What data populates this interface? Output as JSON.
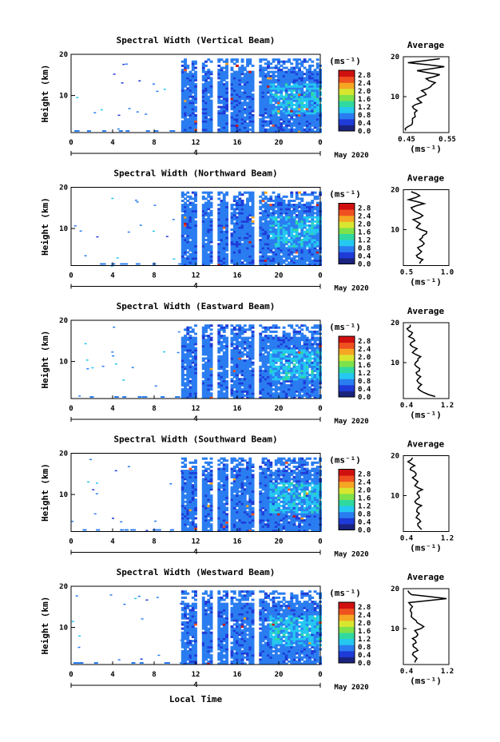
{
  "figure": {
    "x_ticks": [
      "0",
      "4",
      "8",
      "12",
      "16",
      "20",
      "0"
    ],
    "date_marker": "4",
    "date_label": "May 2020",
    "xlabel": "Local Time",
    "ylabel": "Height (km)",
    "y_ticks": [
      "10",
      "20"
    ],
    "colorbar_unit": "(ms⁻¹)",
    "colorbar_ticks": [
      "0.0",
      "0.4",
      "0.8",
      "1.2",
      "1.6",
      "2.0",
      "2.4",
      "2.8"
    ],
    "avg_title": "Average",
    "avg_xlabel": "(ms⁻¹)"
  },
  "chart_data": [
    {
      "type": "heatmap",
      "title": "Spectral Width (Vertical Beam)",
      "xlabel": "Local Time",
      "ylabel": "Height (km)",
      "xlim": [
        0,
        24
      ],
      "ylim": [
        1,
        20
      ],
      "colorbar": {
        "label": "(ms⁻¹)",
        "range": [
          0.0,
          2.8
        ]
      },
      "data_start_hour": 10.6,
      "gap_hours": [
        [
          12.0,
          12.4
        ],
        [
          13.6,
          14.0
        ],
        [
          14.9,
          15.2
        ],
        [
          17.6,
          17.9
        ]
      ],
      "average_profile": {
        "title": "Average",
        "xlabel": "(ms⁻¹)",
        "x_ticks": [
          "0.45",
          "0.55"
        ],
        "xlim": [
          0.45,
          0.55
        ],
        "ylim": [
          1,
          20
        ],
        "height_km": [
          1.5,
          2.5,
          3.5,
          4.5,
          5.5,
          6.5,
          7.5,
          8.5,
          9.5,
          10.5,
          11.5,
          12.5,
          13.5,
          14.5,
          15.5,
          16.5,
          17.5,
          18.5,
          19.5
        ],
        "value": [
          0.455,
          0.46,
          0.47,
          0.47,
          0.475,
          0.48,
          0.47,
          0.49,
          0.48,
          0.5,
          0.49,
          0.51,
          0.52,
          0.5,
          0.53,
          0.48,
          0.54,
          0.46,
          0.53
        ]
      }
    },
    {
      "type": "heatmap",
      "title": "Spectral Width (Northward Beam)",
      "xlabel": "Local Time",
      "ylabel": "Height (km)",
      "xlim": [
        0,
        24
      ],
      "ylim": [
        1,
        20
      ],
      "colorbar": {
        "label": "(ms⁻¹)",
        "range": [
          0.0,
          2.8
        ]
      },
      "data_start_hour": 10.6,
      "gap_hours": [
        [
          12.0,
          12.4
        ],
        [
          13.6,
          14.0
        ],
        [
          14.9,
          15.2
        ],
        [
          17.6,
          17.9
        ]
      ],
      "average_profile": {
        "title": "Average",
        "xlabel": "(ms⁻¹)",
        "x_ticks": [
          "0.5",
          "1.0"
        ],
        "xlim": [
          0.3,
          1.0
        ],
        "ylim": [
          1,
          20
        ],
        "height_km": [
          1.5,
          2.5,
          3.5,
          4.5,
          5.5,
          6.5,
          7.5,
          8.5,
          9.5,
          10.5,
          11.5,
          12.5,
          13.5,
          14.5,
          15.5,
          16.5,
          17.5,
          18.5,
          19.5
        ],
        "value": [
          0.55,
          0.6,
          0.5,
          0.58,
          0.52,
          0.62,
          0.55,
          0.6,
          0.66,
          0.5,
          0.56,
          0.45,
          0.6,
          0.48,
          0.42,
          0.62,
          0.38,
          0.55,
          0.42
        ]
      }
    },
    {
      "type": "heatmap",
      "title": "Spectral Width (Eastward Beam)",
      "xlabel": "Local Time",
      "ylabel": "Height (km)",
      "xlim": [
        0,
        24
      ],
      "ylim": [
        1,
        20
      ],
      "colorbar": {
        "label": "(ms⁻¹)",
        "range": [
          0.0,
          2.8
        ]
      },
      "data_start_hour": 10.6,
      "gap_hours": [
        [
          12.0,
          12.4
        ],
        [
          13.6,
          14.0
        ],
        [
          14.9,
          15.2
        ],
        [
          17.6,
          17.9
        ]
      ],
      "average_profile": {
        "title": "Average",
        "xlabel": "(ms⁻¹)",
        "x_ticks": [
          "0.4",
          "1.2"
        ],
        "xlim": [
          0.3,
          1.3
        ],
        "ylim": [
          1,
          20
        ],
        "height_km": [
          1.5,
          2.5,
          3.5,
          4.5,
          5.5,
          6.5,
          7.5,
          8.5,
          9.5,
          10.5,
          11.5,
          12.5,
          13.5,
          14.5,
          15.5,
          16.5,
          17.5,
          18.5,
          19.5
        ],
        "value": [
          1.0,
          0.75,
          0.62,
          0.7,
          0.6,
          0.68,
          0.58,
          0.66,
          0.55,
          0.62,
          0.68,
          0.5,
          0.6,
          0.45,
          0.55,
          0.42,
          0.5,
          0.38,
          0.45
        ]
      }
    },
    {
      "type": "heatmap",
      "title": "Spectral Width (Southward Beam)",
      "xlabel": "Local Time",
      "ylabel": "Height (km)",
      "xlim": [
        0,
        24
      ],
      "ylim": [
        1,
        20
      ],
      "colorbar": {
        "label": "(ms⁻¹)",
        "range": [
          0.0,
          2.8
        ]
      },
      "data_start_hour": 10.6,
      "gap_hours": [
        [
          12.0,
          12.4
        ],
        [
          13.6,
          14.0
        ],
        [
          14.9,
          15.2
        ],
        [
          17.6,
          17.9
        ]
      ],
      "average_profile": {
        "title": "Average",
        "xlabel": "(ms⁻¹)",
        "x_ticks": [
          "0.4",
          "1.2"
        ],
        "xlim": [
          0.3,
          1.3
        ],
        "ylim": [
          1,
          20
        ],
        "height_km": [
          1.5,
          2.5,
          3.5,
          4.5,
          5.5,
          6.5,
          7.5,
          8.5,
          9.5,
          10.5,
          11.5,
          12.5,
          13.5,
          14.5,
          15.5,
          16.5,
          17.5,
          18.5,
          19.5
        ],
        "value": [
          0.7,
          0.62,
          0.68,
          0.58,
          0.65,
          0.6,
          0.7,
          0.55,
          0.65,
          0.6,
          0.72,
          0.55,
          0.62,
          0.5,
          0.58,
          0.45,
          0.55,
          0.4,
          0.5
        ]
      }
    },
    {
      "type": "heatmap",
      "title": "Spectral Width (Westward Beam)",
      "xlabel": "Local Time",
      "ylabel": "Height (km)",
      "xlim": [
        0,
        24
      ],
      "ylim": [
        1,
        20
      ],
      "colorbar": {
        "label": "(ms⁻¹)",
        "range": [
          0.0,
          2.8
        ]
      },
      "data_start_hour": 10.6,
      "gap_hours": [
        [
          12.0,
          12.4
        ],
        [
          13.6,
          14.0
        ],
        [
          14.9,
          15.2
        ],
        [
          17.6,
          17.9
        ]
      ],
      "average_profile": {
        "title": "Average",
        "xlabel": "(ms⁻¹)",
        "x_ticks": [
          "0.4",
          "1.2"
        ],
        "xlim": [
          0.3,
          1.3
        ],
        "ylim": [
          1,
          20
        ],
        "height_km": [
          1.5,
          2.5,
          3.5,
          4.5,
          5.5,
          6.5,
          7.5,
          8.5,
          9.5,
          10.5,
          11.5,
          12.5,
          13.5,
          14.5,
          15.5,
          16.5,
          17.5,
          18.5,
          19.5
        ],
        "value": [
          0.55,
          0.6,
          0.5,
          0.62,
          0.52,
          0.58,
          0.5,
          0.62,
          0.55,
          0.75,
          0.6,
          0.52,
          0.48,
          0.45,
          0.5,
          0.42,
          1.25,
          0.48,
          0.4
        ]
      }
    }
  ]
}
